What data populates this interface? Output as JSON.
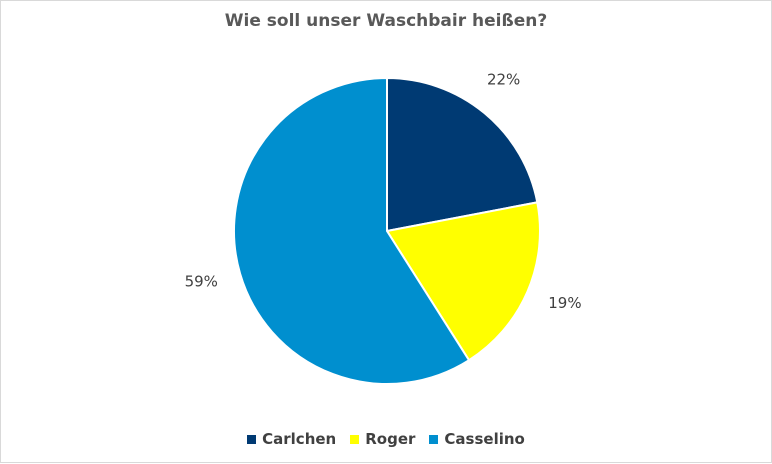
{
  "chart_data": {
    "type": "pie",
    "title": "Wie soll unser Waschbair  heißen?",
    "categories": [
      "Carlchen",
      "Roger",
      "Casselino"
    ],
    "values": [
      22,
      19,
      59
    ],
    "data_labels": [
      "22%",
      "19%",
      "59%"
    ],
    "colors": [
      "#003a73",
      "#ffff00",
      "#008fcf"
    ],
    "start_angle_deg": 0,
    "direction": "clockwise",
    "legend_position": "bottom"
  }
}
